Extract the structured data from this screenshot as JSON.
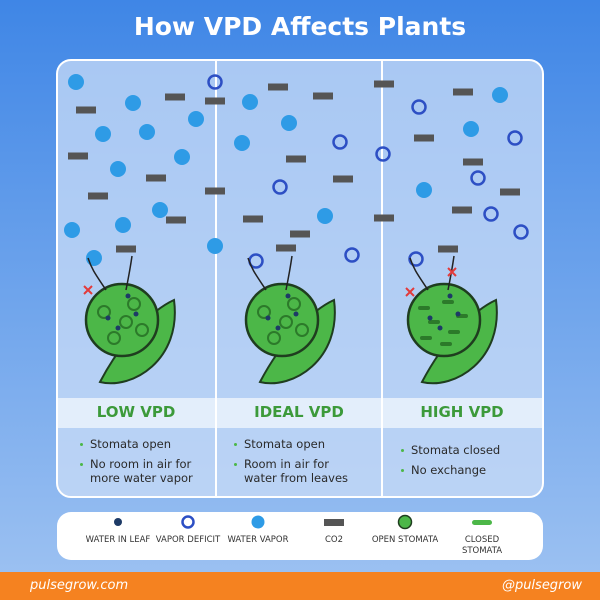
{
  "header": {
    "title": "How VPD Affects Plants"
  },
  "panels": [
    {
      "heading": "LOW VPD",
      "bullets": [
        "Stomata open",
        "No room in air for more water vapor"
      ]
    },
    {
      "heading": "IDEAL VPD",
      "bullets": [
        "Stomata open",
        "Room in air for water from leaves"
      ]
    },
    {
      "heading": "HIGH VPD",
      "bullets": [
        "Stomata closed",
        "No exchange"
      ]
    }
  ],
  "legend": [
    "WATER IN LEAF",
    "VAPOR DEFICIT",
    "WATER VAPOR",
    "CO2",
    "OPEN STOMATA",
    "CLOSED STOMATA"
  ],
  "footer": {
    "website": "pulsegrow.com",
    "handle": "@pulsegrow"
  }
}
